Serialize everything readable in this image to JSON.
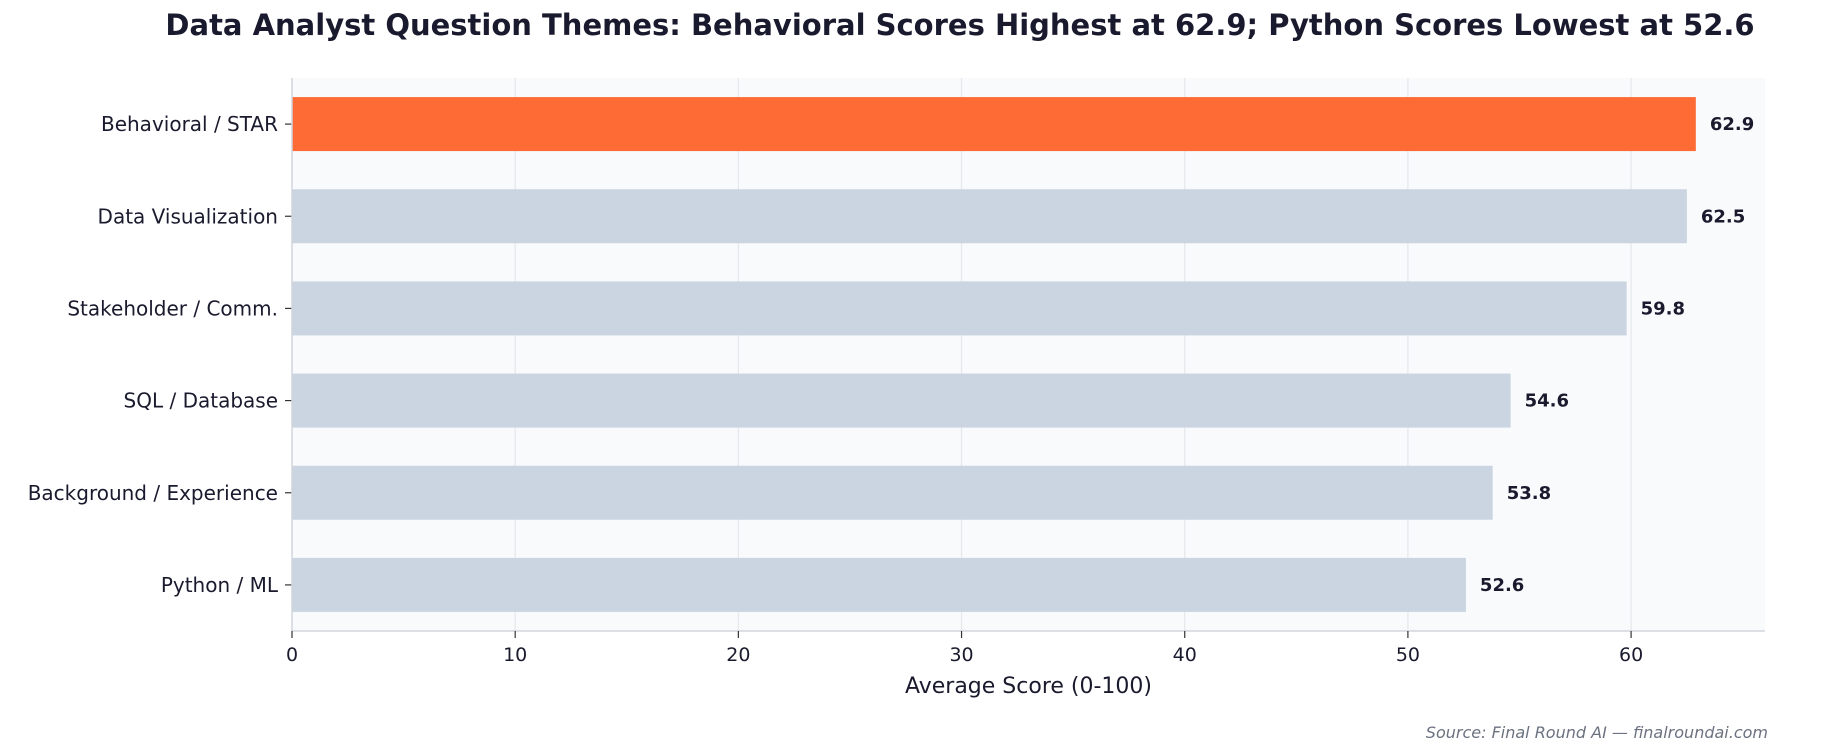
{
  "chart_data": {
    "type": "bar",
    "orientation": "horizontal",
    "title": "Data Analyst Question Themes: Behavioral Scores Highest at 62.9; Python Scores Lowest at 52.6",
    "xlabel": "Average Score (0-100)",
    "ylabel": "",
    "xlim": [
      0,
      66
    ],
    "xticks": [
      0,
      10,
      20,
      30,
      40,
      50,
      60
    ],
    "categories": [
      "Behavioral / STAR",
      "Data Visualization",
      "Stakeholder / Comm.",
      "SQL / Database",
      "Background / Experience",
      "Python / ML"
    ],
    "values": [
      62.9,
      62.5,
      59.8,
      54.6,
      53.8,
      52.6
    ],
    "value_labels": [
      "62.9",
      "62.5",
      "59.8",
      "54.6",
      "53.8",
      "52.6"
    ],
    "highlight_index": 0,
    "grid": "vertical",
    "colors": {
      "highlight": "#ff6b35",
      "bar": "#cbd5e1",
      "plot_bg": "#f8fafc",
      "grid": "#e5e7eb",
      "text": "#1a1a2e"
    }
  },
  "source": "Source: Final Round AI — finalroundai.com"
}
